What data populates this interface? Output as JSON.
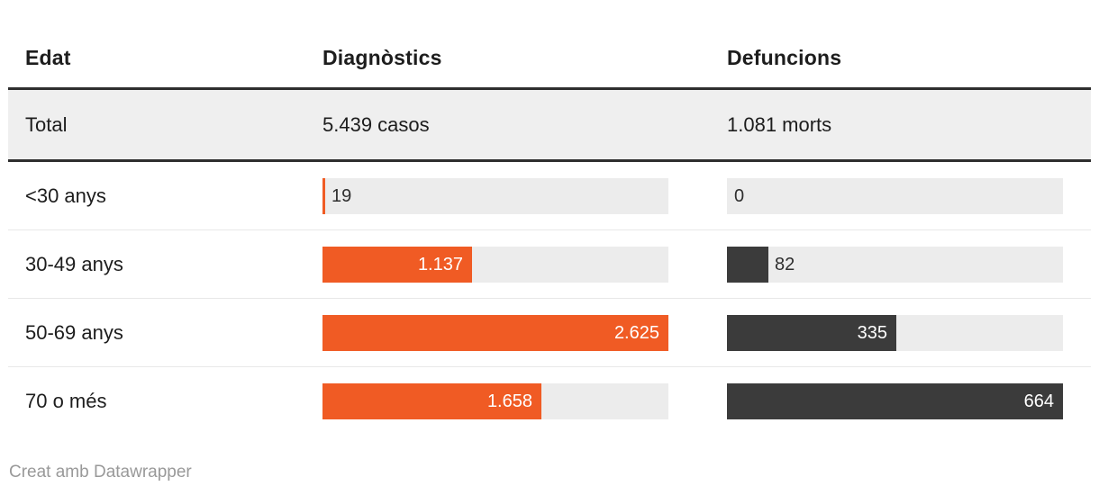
{
  "colors": {
    "orange": "#f05b24",
    "dark": "#3b3b3b",
    "track": "#ececec",
    "total_bg": "#efefef",
    "border": "#2e2e2e",
    "divider": "#e8e8e8",
    "text": "#1d1d1d",
    "inside_label": "#ffffff",
    "outside_label": "#2e2e2e",
    "footer_text": "#999999"
  },
  "table": {
    "headers": [
      {
        "label": "Edat"
      },
      {
        "label": "Diagnòstics"
      },
      {
        "label": "Defuncions"
      }
    ],
    "total_row": {
      "label": "Total",
      "diagnostics": "5.439 casos",
      "defuncions": "1.081 morts"
    },
    "rows": [
      {
        "label": "<30 anys",
        "diagnostics": {
          "value": 19,
          "label": "19"
        },
        "defuncions": {
          "value": 0,
          "label": "0"
        }
      },
      {
        "label": "30-49 anys",
        "diagnostics": {
          "value": 1137,
          "label": "1.137"
        },
        "defuncions": {
          "value": 82,
          "label": "82"
        }
      },
      {
        "label": "50-69 anys",
        "diagnostics": {
          "value": 2625,
          "label": "2.625"
        },
        "defuncions": {
          "value": 335,
          "label": "335"
        }
      },
      {
        "label": "70 o més",
        "diagnostics": {
          "value": 1658,
          "label": "1.658"
        },
        "defuncions": {
          "value": 664,
          "label": "664"
        }
      }
    ]
  },
  "footer": {
    "credit": "Creat amb Datawrapper"
  },
  "chart_data": {
    "type": "bar",
    "title": "",
    "columns": [
      "Edat",
      "Diagnòstics",
      "Defuncions"
    ],
    "categories": [
      "<30 anys",
      "30-49 anys",
      "50-69 anys",
      "70 o més"
    ],
    "series": [
      {
        "name": "Diagnòstics",
        "unit": "casos",
        "total": 5439,
        "total_label": "5.439 casos",
        "values": [
          19,
          1137,
          2625,
          1658
        ],
        "max": 2625,
        "color": "#f05b24"
      },
      {
        "name": "Defuncions",
        "unit": "morts",
        "total": 1081,
        "total_label": "1.081 morts",
        "values": [
          0,
          82,
          335,
          664
        ],
        "max": 664,
        "color": "#3b3b3b"
      }
    ],
    "legend_position": "none",
    "grid": false,
    "value_labels": "on_bars_dot_thousands_separator",
    "footer": "Creat amb Datawrapper"
  }
}
